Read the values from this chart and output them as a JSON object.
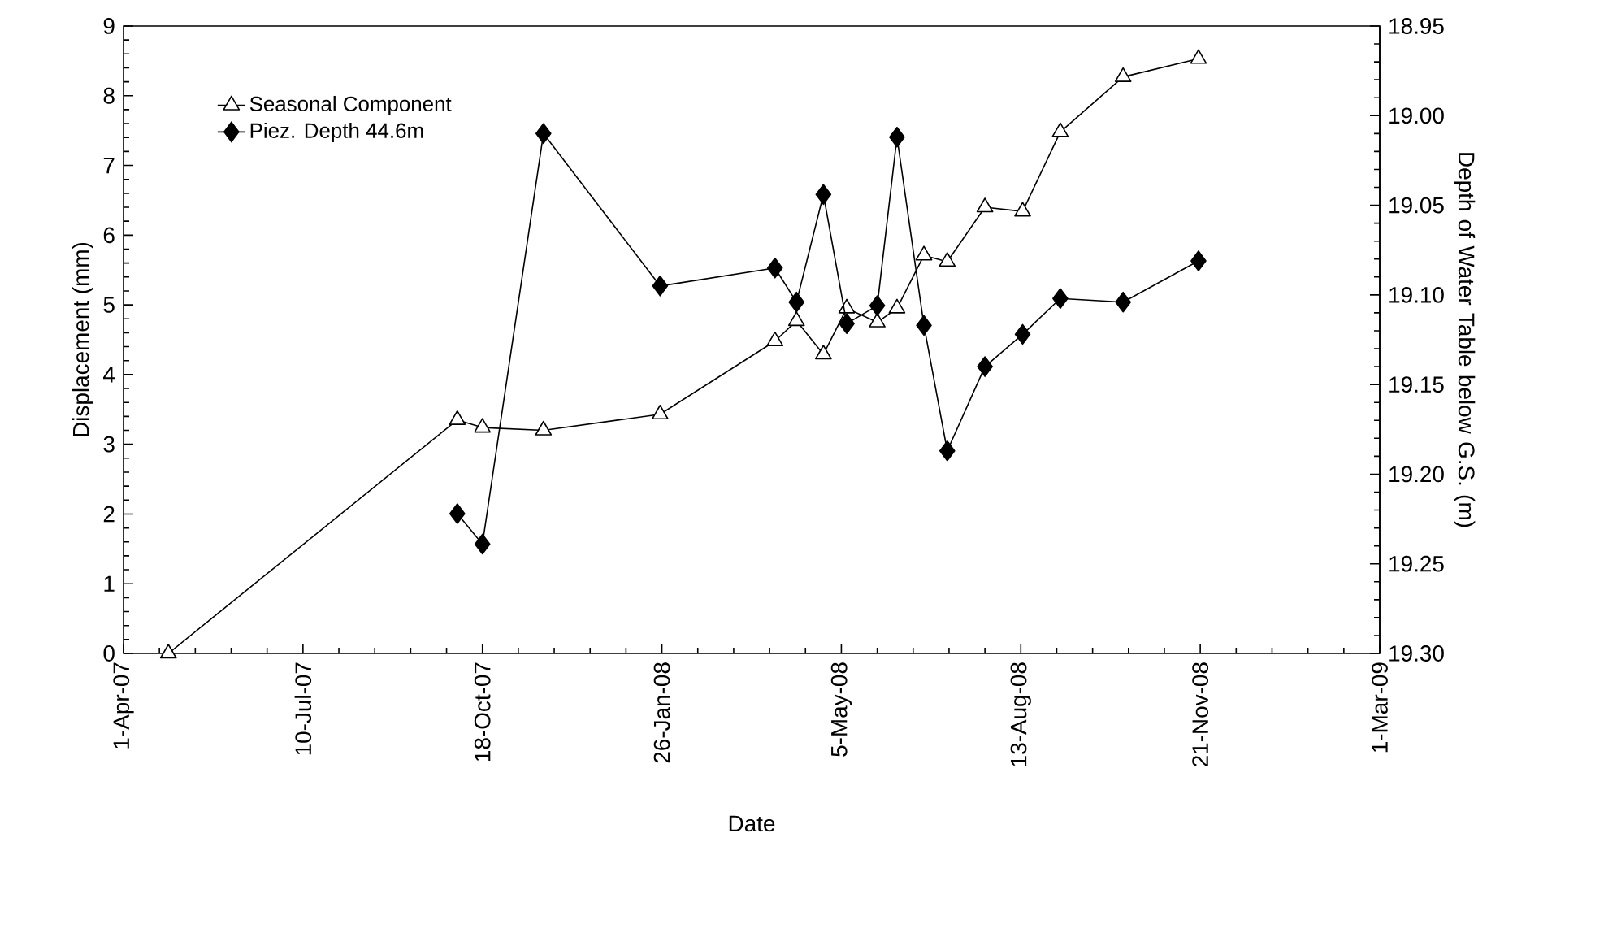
{
  "chart_data": {
    "type": "line",
    "xlabel": "Date",
    "ylabel": "Displacement (mm)",
    "y2label": "Depth of Water Table below G.S. (m)",
    "xlim": [
      "2007-04-01",
      "2009-03-01"
    ],
    "xticks": [
      {
        "value": "2007-04-01",
        "label": "1-Apr-07"
      },
      {
        "value": "2007-07-10",
        "label": "10-Jul-07"
      },
      {
        "value": "2007-10-18",
        "label": "18-Oct-07"
      },
      {
        "value": "2008-01-26",
        "label": "26-Jan-08"
      },
      {
        "value": "2008-05-05",
        "label": "5-May-08"
      },
      {
        "value": "2008-08-13",
        "label": "13-Aug-08"
      },
      {
        "value": "2008-11-21",
        "label": "21-Nov-08"
      },
      {
        "value": "2009-03-01",
        "label": "1-Mar-09"
      }
    ],
    "ylim": [
      0,
      9
    ],
    "yticks": [
      0,
      1,
      2,
      3,
      4,
      5,
      6,
      7,
      8,
      9
    ],
    "y2lim": [
      19.3,
      18.95
    ],
    "y2ticks": [
      {
        "value": 18.95,
        "label": "18.95"
      },
      {
        "value": 19.0,
        "label": "19.00"
      },
      {
        "value": 19.05,
        "label": "19.05"
      },
      {
        "value": 19.1,
        "label": "19.10"
      },
      {
        "value": 19.15,
        "label": "19.15"
      },
      {
        "value": 19.2,
        "label": "19.20"
      },
      {
        "value": 19.25,
        "label": "19.25"
      },
      {
        "value": 19.3,
        "label": "19.30"
      }
    ],
    "legend": "top left",
    "grid": false,
    "line_style": "solid",
    "series": [
      {
        "name": "Seasonal Component",
        "color": "#000000",
        "marker": "triangle",
        "x": [
          "2007-04-26",
          "2007-10-04",
          "2007-10-18",
          "2007-11-21",
          "2008-01-25",
          "2008-03-29",
          "2008-04-10",
          "2008-04-25",
          "2008-05-08",
          "2008-05-25",
          "2008-06-05",
          "2008-06-20",
          "2008-07-03",
          "2008-07-24",
          "2008-08-14",
          "2008-09-04",
          "2008-10-09",
          "2008-11-20"
        ],
        "values": [
          0,
          3.35,
          3.24,
          3.2,
          3.43,
          4.48,
          4.77,
          4.29,
          4.95,
          4.75,
          4.95,
          5.71,
          5.62,
          6.4,
          6.34,
          7.48,
          8.27,
          8.53
        ]
      },
      {
        "name": "Piez. Depth 44.6m",
        "color": "#000000",
        "marker": "diamond",
        "axis": "y2",
        "x": [
          "2007-10-04",
          "2007-10-18",
          "2007-11-21",
          "2008-01-25",
          "2008-03-29",
          "2008-04-10",
          "2008-04-25",
          "2008-05-08",
          "2008-05-25",
          "2008-06-05",
          "2008-06-20",
          "2008-07-03",
          "2008-07-24",
          "2008-08-14",
          "2008-09-04",
          "2008-10-09",
          "2008-11-20"
        ],
        "values": [
          19.222,
          19.239,
          19.01,
          19.095,
          19.085,
          19.104,
          19.044,
          19.116,
          19.106,
          19.012,
          19.117,
          19.187,
          19.14,
          19.122,
          19.102,
          19.104,
          19.081
        ]
      }
    ]
  }
}
